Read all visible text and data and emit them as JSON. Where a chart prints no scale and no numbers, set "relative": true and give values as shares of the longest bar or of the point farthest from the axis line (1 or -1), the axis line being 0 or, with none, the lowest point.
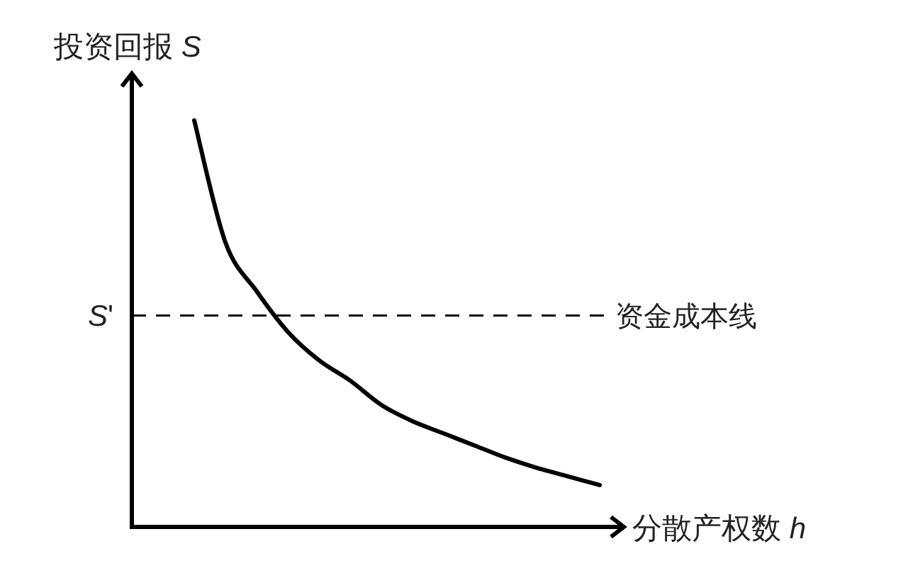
{
  "chart_data": {
    "type": "line",
    "relative": true,
    "xlabel": "分散产权数 *h*",
    "ylabel": "投资回报 *S*",
    "categories": [
      null,
      null,
      null,
      null,
      null,
      null,
      null,
      null,
      null,
      null,
      null,
      null,
      null,
      null,
      null,
      null
    ],
    "series": [
      {
        "color": "#000000",
        "values": [
          null,
          null,
          1,
          0.7,
          0.58,
          0.48,
          0.41,
          0.36,
          0.3,
          0.26,
          0.23,
          0.2,
          0.17,
          0.145,
          0.124,
          0.103
        ]
      }
    ],
    "ref_lines": [
      {
        "axis": "y",
        "value": 0.52,
        "label": "资金成本线",
        "line_style": "dashed"
      }
    ],
    "annotations": [
      "*S*'"
    ],
    "marker": "none",
    "line_style": "solid"
  }
}
